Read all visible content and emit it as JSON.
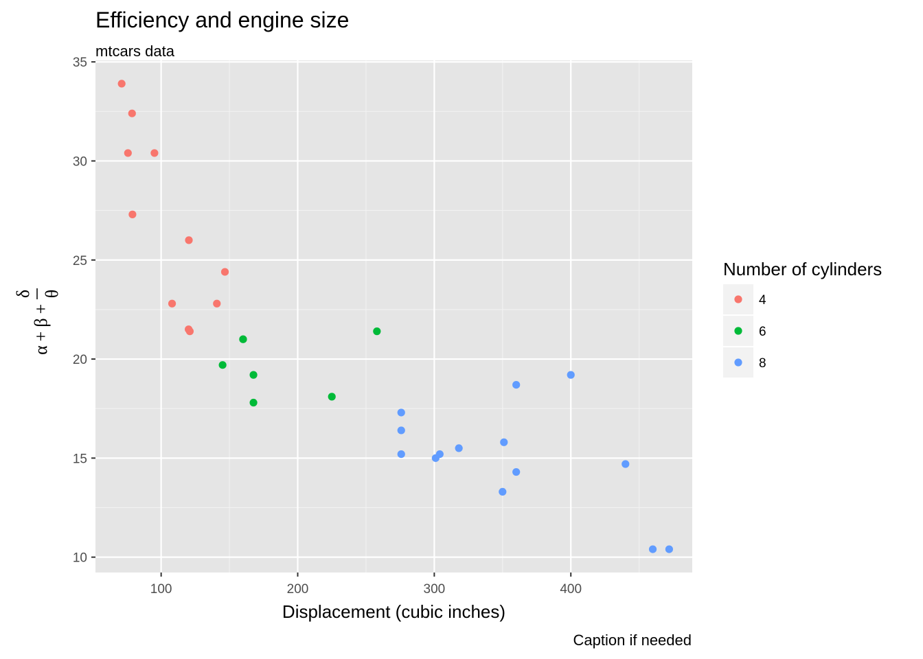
{
  "chart_data": {
    "type": "scatter",
    "title": "Efficiency and engine size",
    "subtitle": "mtcars data",
    "caption": "Caption if needed",
    "xlabel": "Displacement (cubic inches)",
    "ylabel": "α + β + δ/θ",
    "ylabel_parts": {
      "alpha": "α",
      "beta": "β",
      "plus": "+",
      "delta": "δ",
      "theta": "θ"
    },
    "xlim": [
      51.9,
      488.9
    ],
    "ylim": [
      9.225,
      35.075
    ],
    "x_ticks": [
      {
        "value": 100,
        "label": "100"
      },
      {
        "value": 200,
        "label": "200"
      },
      {
        "value": 300,
        "label": "300"
      },
      {
        "value": 400,
        "label": "400"
      }
    ],
    "y_ticks": [
      {
        "value": 10,
        "label": "10"
      },
      {
        "value": 15,
        "label": "15"
      },
      {
        "value": 20,
        "label": "20"
      },
      {
        "value": 25,
        "label": "25"
      },
      {
        "value": 30,
        "label": "30"
      },
      {
        "value": 35,
        "label": "35"
      }
    ],
    "grid": true,
    "legend": {
      "title": "Number of cylinders",
      "position": "right"
    },
    "series": [
      {
        "name": "4",
        "color": "#f8766d",
        "points": [
          {
            "x": 108,
            "y": 22.8
          },
          {
            "x": 146.7,
            "y": 24.4
          },
          {
            "x": 140.8,
            "y": 22.8
          },
          {
            "x": 78.7,
            "y": 32.4
          },
          {
            "x": 75.7,
            "y": 30.4
          },
          {
            "x": 71.1,
            "y": 33.9
          },
          {
            "x": 120.1,
            "y": 21.5
          },
          {
            "x": 79,
            "y": 27.3
          },
          {
            "x": 120.3,
            "y": 26.0
          },
          {
            "x": 95.1,
            "y": 30.4
          },
          {
            "x": 121,
            "y": 21.4
          }
        ]
      },
      {
        "name": "6",
        "color": "#00ba38",
        "points": [
          {
            "x": 160,
            "y": 21.0
          },
          {
            "x": 160,
            "y": 21.0
          },
          {
            "x": 258,
            "y": 21.4
          },
          {
            "x": 225,
            "y": 18.1
          },
          {
            "x": 167.6,
            "y": 19.2
          },
          {
            "x": 167.6,
            "y": 17.8
          },
          {
            "x": 145,
            "y": 19.7
          }
        ]
      },
      {
        "name": "8",
        "color": "#619cff",
        "points": [
          {
            "x": 360,
            "y": 18.7
          },
          {
            "x": 360,
            "y": 14.3
          },
          {
            "x": 275.8,
            "y": 16.4
          },
          {
            "x": 275.8,
            "y": 17.3
          },
          {
            "x": 275.8,
            "y": 15.2
          },
          {
            "x": 472,
            "y": 10.4
          },
          {
            "x": 460,
            "y": 10.4
          },
          {
            "x": 440,
            "y": 14.7
          },
          {
            "x": 318,
            "y": 15.5
          },
          {
            "x": 304,
            "y": 15.2
          },
          {
            "x": 350,
            "y": 13.3
          },
          {
            "x": 400,
            "y": 19.2
          },
          {
            "x": 351,
            "y": 15.8
          },
          {
            "x": 301,
            "y": 15.0
          }
        ]
      }
    ],
    "colors": {
      "panel_background": "#e5e5e5",
      "grid_major": "#ffffff",
      "grid_minor": "#f2f2f2",
      "tick": "#333333",
      "legend_key_background": "#f2f2f2"
    }
  }
}
